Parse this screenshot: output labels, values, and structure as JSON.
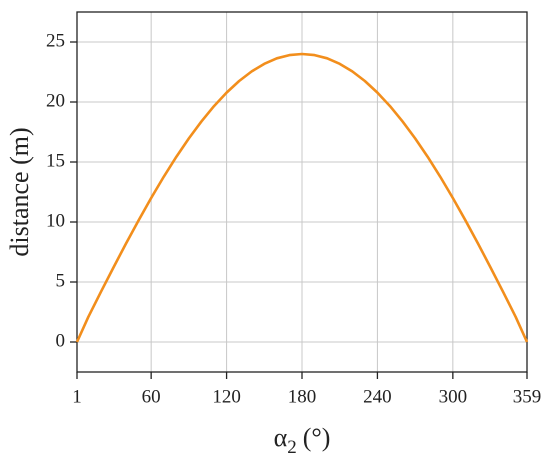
{
  "chart_data": {
    "type": "line",
    "xlabel": {
      "symbol": "α",
      "subscript": "2",
      "unit": "(°)"
    },
    "ylabel": "distance (m)",
    "x": [
      1,
      10,
      20,
      30,
      40,
      50,
      60,
      70,
      80,
      90,
      100,
      110,
      120,
      130,
      140,
      150,
      160,
      170,
      180,
      190,
      200,
      210,
      220,
      230,
      240,
      250,
      260,
      270,
      280,
      290,
      300,
      310,
      320,
      330,
      340,
      350,
      359
    ],
    "series": [
      {
        "name": "distance",
        "color": "#f28e1c",
        "values": [
          0,
          2.09,
          4.17,
          6.21,
          8.21,
          10.14,
          12,
          13.77,
          15.43,
          16.97,
          18.38,
          19.66,
          20.78,
          21.75,
          22.55,
          23.18,
          23.64,
          23.91,
          24,
          23.91,
          23.64,
          23.18,
          22.55,
          21.75,
          20.78,
          19.66,
          18.38,
          16.97,
          15.43,
          13.77,
          12,
          10.14,
          8.21,
          6.21,
          4.17,
          2.09,
          0
        ]
      }
    ],
    "xlim": [
      1,
      359
    ],
    "xticks": [
      1,
      60,
      120,
      180,
      240,
      300,
      359
    ],
    "ylim": [
      -2.5,
      27.5
    ],
    "yticks": [
      0,
      5,
      10,
      15,
      20,
      25
    ],
    "grid": true
  }
}
